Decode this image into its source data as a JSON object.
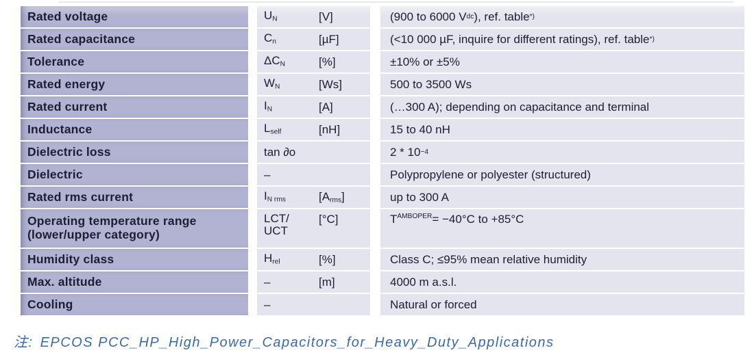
{
  "colors": {
    "param_column_bg": "#b2b2d2",
    "value_column_bg": "#e4e4ee",
    "text": "#1d1d33",
    "footnote_blue": "#3b6aa5"
  },
  "table": {
    "rows": [
      {
        "param": "Rated voltage",
        "symbol": [
          {
            "t": "U"
          },
          {
            "sub": "N"
          }
        ],
        "unit": [
          {
            "t": "[V]"
          }
        ],
        "value": [
          {
            "t": "(900 to 6000 V"
          },
          {
            "sub": "dc"
          },
          {
            "t": "), ref. table"
          },
          {
            "sup": "*)"
          }
        ]
      },
      {
        "param": "Rated capacitance",
        "symbol": [
          {
            "t": "C"
          },
          {
            "sub": "n"
          }
        ],
        "unit": [
          {
            "t": "[µF]"
          }
        ],
        "value": [
          {
            "t": "(<10 000 µF, inquire for different ratings), ref. table"
          },
          {
            "sup": "*)"
          }
        ]
      },
      {
        "param": "Tolerance",
        "symbol": [
          {
            "t": "ΔC"
          },
          {
            "sub": "N"
          }
        ],
        "unit": [
          {
            "t": "[%]"
          }
        ],
        "value": [
          {
            "t": "±10% or ±5%"
          }
        ]
      },
      {
        "param": "Rated energy",
        "symbol": [
          {
            "t": "W"
          },
          {
            "sub": "N"
          }
        ],
        "unit": [
          {
            "t": "[Ws]"
          }
        ],
        "value": [
          {
            "t": "500 to 3500 Ws"
          }
        ]
      },
      {
        "param": "Rated current",
        "symbol": [
          {
            "t": "I"
          },
          {
            "sub": "N"
          }
        ],
        "unit": [
          {
            "t": "[A]"
          }
        ],
        "value": [
          {
            "t": "(…300 A); depending on capacitance and terminal"
          }
        ]
      },
      {
        "param": "Inductance",
        "symbol": [
          {
            "t": "L"
          },
          {
            "sub": "self"
          }
        ],
        "unit": [
          {
            "t": "[nH]"
          }
        ],
        "value": [
          {
            "t": "15 to 40 nH"
          }
        ]
      },
      {
        "param": "Dielectric loss",
        "symbol": [
          {
            "t": "tan ∂o"
          }
        ],
        "unit": [],
        "value": [
          {
            "t": "2 * 10"
          },
          {
            "sup": "−4"
          }
        ]
      },
      {
        "param": "Dielectric",
        "symbol": [
          {
            "t": "–"
          }
        ],
        "unit": [],
        "value": [
          {
            "t": "Polypropylene or polyester (structured)"
          }
        ]
      },
      {
        "param": "Rated rms current",
        "symbol": [
          {
            "t": "I"
          },
          {
            "sub": "N rms"
          }
        ],
        "unit": [
          {
            "t": "[A"
          },
          {
            "sub": "rms"
          },
          {
            "t": "]"
          }
        ],
        "value": [
          {
            "t": "up to 300 A"
          }
        ]
      },
      {
        "param": "Operating temperature range",
        "param2": "(lower/upper category)",
        "tall": true,
        "symbol": [
          {
            "t": "LCT/"
          },
          {
            "br": true
          },
          {
            "t": "UCT"
          }
        ],
        "unit": [
          {
            "t": "[°C]"
          }
        ],
        "value": [
          {
            "t": "T"
          },
          {
            "sub": "AMBOPER"
          },
          {
            "t": " = −40°C to +85°C"
          }
        ]
      },
      {
        "param": "Humidity class",
        "symbol": [
          {
            "t": "H"
          },
          {
            "sub": "rel"
          }
        ],
        "unit": [
          {
            "t": "[%]"
          }
        ],
        "value": [
          {
            "t": "Class C; ≤95% mean relative humidity"
          }
        ]
      },
      {
        "param": "Max. altitude",
        "symbol": [
          {
            "t": "–"
          }
        ],
        "unit": [
          {
            "t": "[m]"
          }
        ],
        "value": [
          {
            "t": "4000 m a.s.l."
          }
        ]
      },
      {
        "param": "Cooling",
        "symbol": [
          {
            "t": "–"
          }
        ],
        "unit": [],
        "value": [
          {
            "t": "Natural or forced"
          }
        ]
      }
    ]
  },
  "footnote": {
    "prefix": "注:",
    "text": "EPCOS PCC_HP_High_Power_Capacitors_for_Heavy_Duty_Applications"
  }
}
